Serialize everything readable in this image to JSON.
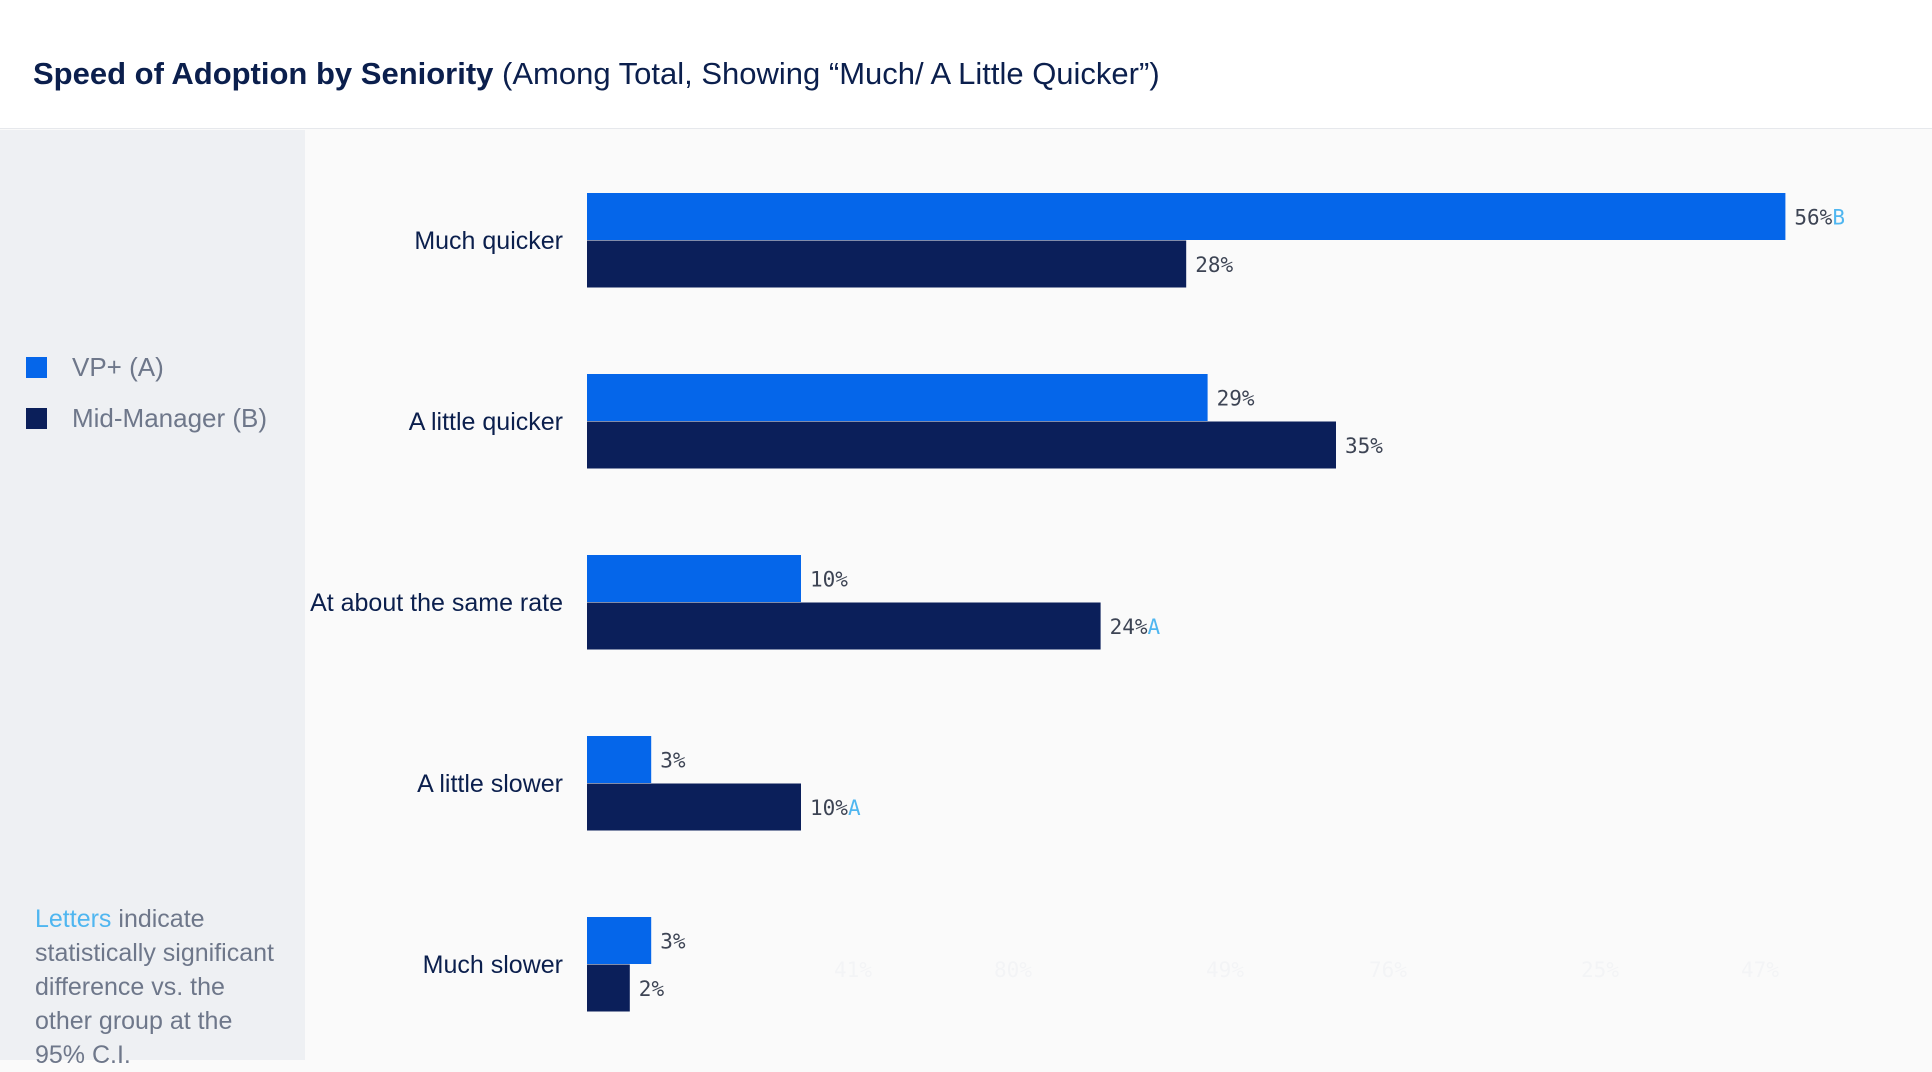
{
  "header": {
    "title_bold": "Speed of Adoption by Seniority",
    "title_rest": "(Among Total, Showing “Much/ A Little Quicker”)"
  },
  "legend": [
    {
      "label": "VP+ (A)",
      "color": "#0566ea"
    },
    {
      "label": "Mid-Manager (B)",
      "color": "#0b1f5a"
    }
  ],
  "note": {
    "accent": "Letters",
    "text": "indicate statistically significant difference vs. the other group at the 95% C.I."
  },
  "chart_data": {
    "type": "bar",
    "orientation": "horizontal",
    "title": "Speed of Adoption by Seniority (Among Total, Showing “Much/ A Little Quicker”)",
    "categories": [
      "Much quicker",
      "A little quicker",
      "At about the same rate",
      "A little slower",
      "Much slower"
    ],
    "series": [
      {
        "name": "VP+ (A)",
        "color": "#0566ea",
        "values": [
          56,
          29,
          10,
          3,
          3
        ],
        "sig_letters": [
          "B",
          "",
          "",
          "",
          ""
        ]
      },
      {
        "name": "Mid-Manager (B)",
        "color": "#0b1f5a",
        "values": [
          28,
          35,
          24,
          10,
          2
        ],
        "sig_letters": [
          "",
          "",
          "A",
          "A",
          ""
        ]
      }
    ],
    "value_suffix": "%",
    "xlim": [
      0,
      56
    ],
    "xlabel": "",
    "ylabel": "",
    "grid": false,
    "faint_tick_labels": [
      "41%",
      "80%",
      "49%",
      "76%",
      "25%",
      "47%"
    ]
  }
}
